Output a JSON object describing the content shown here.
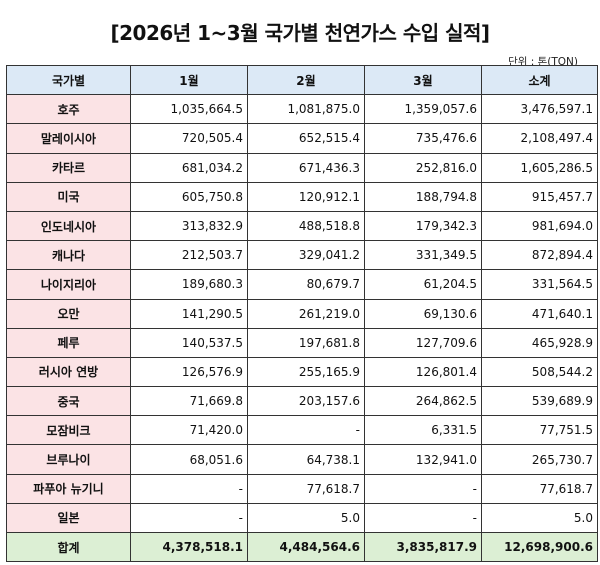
{
  "title": "[2026년 1~3월 국가별 천연가스 수입 실적]",
  "unit": "단위 : 톤(TON)",
  "headers": [
    "국가별",
    "1월",
    "2월",
    "3월",
    "소계"
  ],
  "rows": [
    [
      "호주",
      "1,035,664.5",
      "1,081,875.0",
      "1,359,057.6",
      "3,476,597.1"
    ],
    [
      "말레이시아",
      "720,505.4",
      "652,515.4",
      "735,476.6",
      "2,108,497.4"
    ],
    [
      "카타르",
      "681,034.2",
      "671,436.3",
      "252,816.0",
      "1,605,286.5"
    ],
    [
      "미국",
      "605,750.8",
      "120,912.1",
      "188,794.8",
      "915,457.7"
    ],
    [
      "인도네시아",
      "313,832.9",
      "488,518.8",
      "179,342.3",
      "981,694.0"
    ],
    [
      "캐나다",
      "212,503.7",
      "329,041.2",
      "331,349.5",
      "872,894.4"
    ],
    [
      "나이지리아",
      "189,680.3",
      "80,679.7",
      "61,204.5",
      "331,564.5"
    ],
    [
      "오만",
      "141,290.5",
      "261,219.0",
      "69,130.6",
      "471,640.1"
    ],
    [
      "페루",
      "140,537.5",
      "197,681.8",
      "127,709.6",
      "465,928.9"
    ],
    [
      "러시아 연방",
      "126,576.9",
      "255,165.9",
      "126,801.4",
      "508,544.2"
    ],
    [
      "중국",
      "71,669.8",
      "203,157.6",
      "264,862.5",
      "539,689.9"
    ],
    [
      "모잠비크",
      "71,420.0",
      "-",
      "6,331.5",
      "77,751.5"
    ],
    [
      "브루나이",
      "68,051.6",
      "64,738.1",
      "132,941.0",
      "265,730.7"
    ],
    [
      "파푸아 뉴기니",
      "-",
      "77,618.7",
      "-",
      "77,618.7"
    ],
    [
      "일본",
      "-",
      "5.0",
      "-",
      "5.0"
    ]
  ],
  "total": [
    "합계",
    "4,378,518.1",
    "4,484,564.6",
    "3,835,817.9",
    "12,698,900.6"
  ],
  "colors": {
    "header_bg": "#dce9f6",
    "country_bg": "#fbe3e5",
    "total_bg": "#dcefd4"
  }
}
